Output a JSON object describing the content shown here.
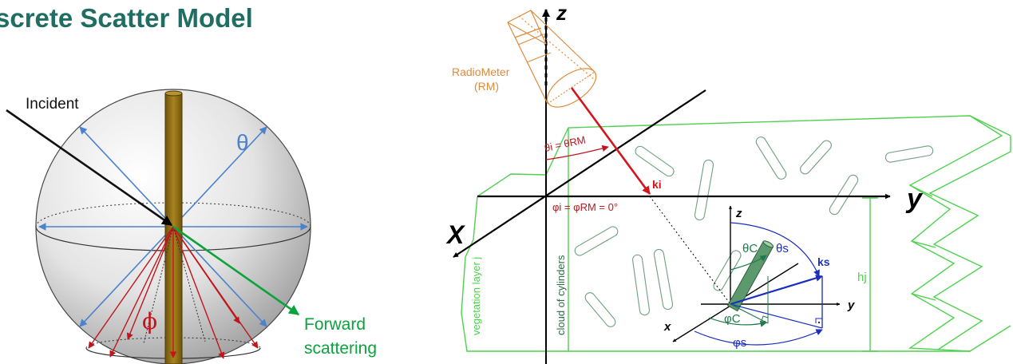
{
  "title": "screte Scatter Model",
  "colors": {
    "title": "#1f6d63",
    "stem": "#8a6a12",
    "blue": "#4a82cc",
    "red": "#c0151c",
    "green": "#0aa33c",
    "radiometer": "#e08a3c",
    "layer": "#4fd14f",
    "cylinder": "#6f9f7f",
    "dark_blue": "#1b2fbf"
  },
  "left_diagram": {
    "incident_label": "Incident",
    "theta_label": "θ",
    "phi_label": "ϕ",
    "forward_label_1": "Forward",
    "forward_label_2": "scattering"
  },
  "right_diagram": {
    "z_axis": "z",
    "y_axis": "y",
    "x_axis": "X",
    "radiometer_1": "RadioMeter",
    "radiometer_2": "(RM)",
    "theta_i": "θi = θRM",
    "phi_i": "φi = φRM = 0°",
    "k_i": "ki",
    "k_s": "ks",
    "h_j": "hj",
    "vegetation_layer": "vegetation layer j",
    "cloud": "cloud of cylinders",
    "inner_z": "z",
    "inner_y": "y",
    "inner_x": "x",
    "theta_c": "θC",
    "theta_s": "θs",
    "phi_c": "φC",
    "phi_s": "φs"
  }
}
